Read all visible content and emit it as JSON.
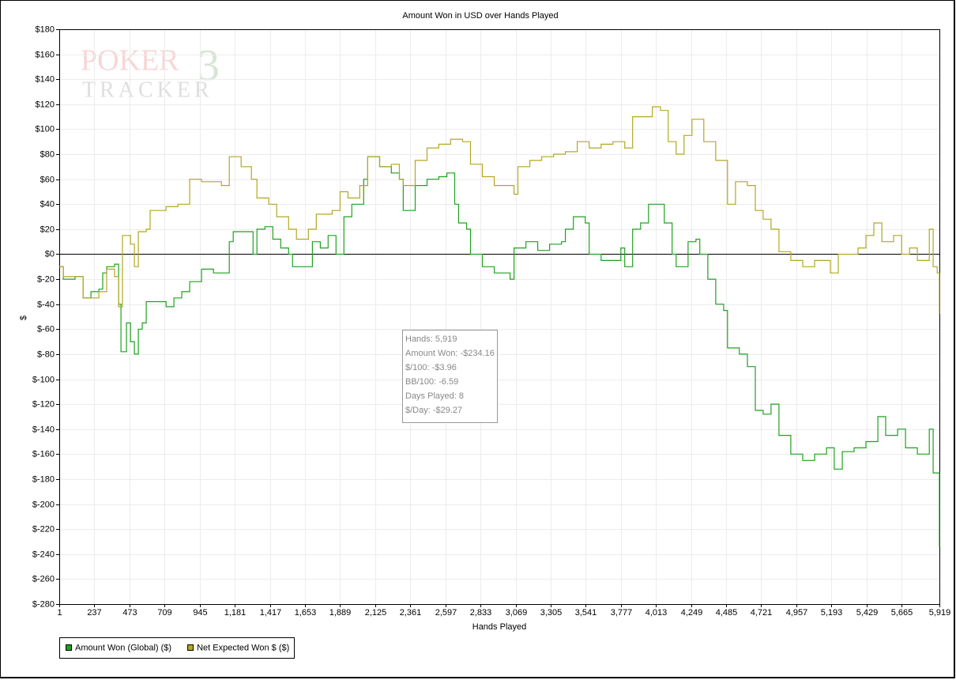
{
  "chart_data": {
    "type": "line",
    "title": "Amount Won in USD over Hands Played",
    "xlabel": "Hands Played",
    "ylabel": "$",
    "watermark": [
      "POKER",
      "TRACKER",
      "3"
    ],
    "xlim": [
      1,
      5919
    ],
    "ylim": [
      -280,
      180
    ],
    "grid": true,
    "legend": "bottom-left",
    "xticks": [
      1,
      237,
      473,
      709,
      945,
      {
        "value": 1181,
        "label": "1,181"
      },
      {
        "value": 1417,
        "label": "1,417"
      },
      {
        "value": 1653,
        "label": "1,653"
      },
      {
        "value": 1889,
        "label": "1,889"
      },
      {
        "value": 2125,
        "label": "2,125"
      },
      {
        "value": 2361,
        "label": "2,361"
      },
      {
        "value": 2597,
        "label": "2,597"
      },
      {
        "value": 2833,
        "label": "2,833"
      },
      {
        "value": 3069,
        "label": "3,069"
      },
      {
        "value": 3305,
        "label": "3,305"
      },
      {
        "value": 3541,
        "label": "3,541"
      },
      {
        "value": 3777,
        "label": "3,777"
      },
      {
        "value": 4013,
        "label": "4,013"
      },
      {
        "value": 4249,
        "label": "4,249"
      },
      {
        "value": 4485,
        "label": "4,485"
      },
      {
        "value": 4721,
        "label": "4,721"
      },
      {
        "value": 4957,
        "label": "4,957"
      },
      {
        "value": 5193,
        "label": "5,193"
      },
      {
        "value": 5429,
        "label": "5,429"
      },
      {
        "value": 5665,
        "label": "5,665"
      },
      {
        "value": 5919,
        "label": "5,919"
      }
    ],
    "yticks": [
      {
        "value": 180,
        "label": "$180"
      },
      {
        "value": 160,
        "label": "$160"
      },
      {
        "value": 140,
        "label": "$140"
      },
      {
        "value": 120,
        "label": "$120"
      },
      {
        "value": 100,
        "label": "$100"
      },
      {
        "value": 80,
        "label": "$80"
      },
      {
        "value": 60,
        "label": "$60"
      },
      {
        "value": 40,
        "label": "$40"
      },
      {
        "value": 20,
        "label": "$20"
      },
      {
        "value": 0,
        "label": "$0"
      },
      {
        "value": -20,
        "label": "$-20"
      },
      {
        "value": -40,
        "label": "$-40"
      },
      {
        "value": -60,
        "label": "$-60"
      },
      {
        "value": -80,
        "label": "$-80"
      },
      {
        "value": -100,
        "label": "$-100"
      },
      {
        "value": -120,
        "label": "$-120"
      },
      {
        "value": -140,
        "label": "$-140"
      },
      {
        "value": -160,
        "label": "$-160"
      },
      {
        "value": -180,
        "label": "$-180"
      },
      {
        "value": -200,
        "label": "$-200"
      },
      {
        "value": -220,
        "label": "$-220"
      },
      {
        "value": -240,
        "label": "$-240"
      },
      {
        "value": -260,
        "label": "$-260"
      },
      {
        "value": -280,
        "label": "$-280"
      }
    ],
    "series": [
      {
        "name": "Amount Won (Global) ($)",
        "color": "#1fa21f",
        "x": [
          1,
          28,
          107,
          161,
          214,
          267,
          293,
          320,
          373,
          400,
          416,
          453,
          480,
          506,
          533,
          559,
          586,
          639,
          719,
          772,
          825,
          878,
          958,
          1038,
          1118,
          1144,
          1171,
          1251,
          1304,
          1330,
          1384,
          1437,
          1490,
          1543,
          1570,
          1650,
          1703,
          1756,
          1809,
          1862,
          1915,
          1968,
          2048,
          2075,
          2155,
          2234,
          2288,
          2314,
          2367,
          2394,
          2474,
          2553,
          2607,
          2660,
          2686,
          2740,
          2766,
          2846,
          2926,
          3006,
          3032,
          3059,
          3139,
          3218,
          3298,
          3378,
          3404,
          3458,
          3538,
          3564,
          3644,
          3724,
          3777,
          3803,
          3856,
          3910,
          3963,
          4016,
          4069,
          4122,
          4149,
          4202,
          4229,
          4282,
          4308,
          4362,
          4415,
          4468,
          4494,
          4574,
          4628,
          4681,
          4734,
          4787,
          4840,
          4920,
          5000,
          5080,
          5160,
          5212,
          5266,
          5345,
          5425,
          5505,
          5558,
          5638,
          5691,
          5771,
          5824,
          5851,
          5877,
          5904,
          5919
        ],
        "values": [
          -10,
          -20,
          -18,
          -35,
          -30,
          -28,
          -15,
          -10,
          -8,
          -40,
          -78,
          -55,
          -70,
          -80,
          -60,
          -55,
          -38,
          -38,
          -42,
          -35,
          -30,
          -22,
          -12,
          -15,
          -15,
          10,
          18,
          18,
          0,
          20,
          22,
          12,
          5,
          0,
          -10,
          -10,
          10,
          5,
          15,
          0,
          30,
          40,
          60,
          78,
          70,
          65,
          60,
          35,
          35,
          55,
          60,
          62,
          65,
          40,
          25,
          20,
          0,
          -10,
          -15,
          -15,
          -20,
          5,
          10,
          3,
          8,
          10,
          20,
          30,
          25,
          0,
          -5,
          -5,
          5,
          -10,
          20,
          25,
          40,
          40,
          25,
          0,
          -10,
          -10,
          10,
          12,
          0,
          -20,
          -40,
          -45,
          -75,
          -80,
          -90,
          -125,
          -128,
          -120,
          -145,
          -160,
          -165,
          -160,
          -155,
          -172,
          -158,
          -155,
          -150,
          -130,
          -145,
          -140,
          -155,
          -160,
          -160,
          -140,
          -175,
          -175,
          -234.16
        ]
      },
      {
        "name": "Net Expected Won $ ($)",
        "color": "#b3a722",
        "x": [
          1,
          28,
          161,
          267,
          320,
          373,
          400,
          426,
          480,
          506,
          533,
          586,
          612,
          719,
          799,
          878,
          958,
          1091,
          1144,
          1224,
          1293,
          1330,
          1410,
          1463,
          1543,
          1596,
          1676,
          1729,
          1836,
          1889,
          1942,
          2022,
          2075,
          2155,
          2234,
          2288,
          2314,
          2394,
          2474,
          2553,
          2633,
          2713,
          2766,
          2846,
          2926,
          3006,
          3059,
          3085,
          3165,
          3245,
          3325,
          3404,
          3484,
          3564,
          3644,
          3724,
          3803,
          3856,
          3936,
          3989,
          4043,
          4096,
          4149,
          4202,
          4255,
          4335,
          4415,
          4494,
          4548,
          4628,
          4681,
          4734,
          4787,
          4840,
          4920,
          5000,
          5080,
          5133,
          5186,
          5239,
          5319,
          5372,
          5425,
          5478,
          5532,
          5611,
          5665,
          5718,
          5771,
          5824,
          5851,
          5877,
          5904,
          5919
        ],
        "values": [
          -10,
          -18,
          -35,
          -30,
          -12,
          -18,
          -42,
          15,
          8,
          -10,
          18,
          20,
          35,
          38,
          40,
          60,
          58,
          55,
          78,
          70,
          60,
          45,
          40,
          30,
          20,
          12,
          20,
          32,
          35,
          50,
          45,
          55,
          78,
          70,
          72,
          60,
          55,
          75,
          85,
          88,
          92,
          90,
          72,
          62,
          55,
          55,
          48,
          70,
          75,
          78,
          80,
          82,
          90,
          85,
          88,
          90,
          85,
          110,
          110,
          118,
          115,
          90,
          80,
          95,
          108,
          90,
          75,
          40,
          58,
          55,
          35,
          28,
          20,
          2,
          -5,
          -10,
          -5,
          -5,
          -15,
          0,
          0,
          5,
          15,
          25,
          10,
          15,
          0,
          5,
          -5,
          -5,
          20,
          -10,
          -15,
          -48
        ]
      }
    ],
    "tooltip": [
      "Hands: 5,919",
      "Amount Won: -$234.16",
      "$/100: -$3.96",
      "BB/100: -6.59",
      "Days Played: 8",
      "$/Day: -$29.27"
    ]
  }
}
